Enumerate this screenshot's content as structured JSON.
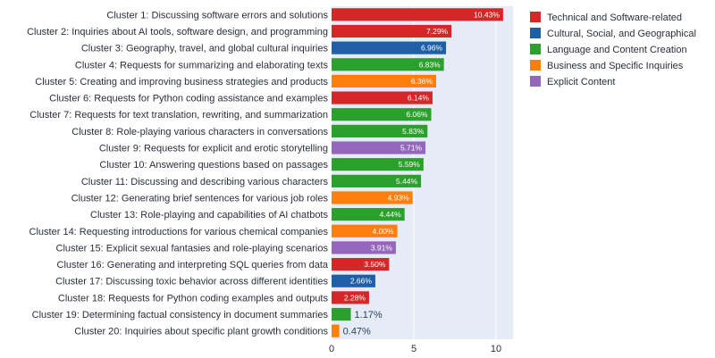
{
  "chart_data": {
    "type": "bar",
    "orientation": "horizontal",
    "xlim": [
      0,
      11
    ],
    "xticks": [
      0,
      5,
      10
    ],
    "categories": [
      "Cluster 1: Discussing software errors and solutions",
      "Cluster 2: Inquiries about AI tools, software design, and programming",
      "Cluster 3: Geography, travel, and global cultural inquiries",
      "Cluster 4: Requests for summarizing and elaborating texts",
      "Cluster 5: Creating and improving business strategies and products",
      "Cluster 6: Requests for Python coding assistance and examples",
      "Cluster 7: Requests for text translation, rewriting, and summarization",
      "Cluster 8: Role-playing various characters in conversations",
      "Cluster 9: Requests for explicit and erotic storytelling",
      "Cluster 10: Answering questions based on passages",
      "Cluster 11: Discussing and describing various characters",
      "Cluster 12: Generating brief sentences for various job roles",
      "Cluster 13: Role-playing and capabilities of AI chatbots",
      "Cluster 14: Requesting introductions for various chemical companies",
      "Cluster 15: Explicit sexual fantasies and role-playing scenarios",
      "Cluster 16: Generating and interpreting SQL queries from data",
      "Cluster 17: Discussing toxic behavior across different identities",
      "Cluster 18: Requests for Python coding examples and outputs",
      "Cluster 19: Determining factual consistency in document summaries",
      "Cluster 20: Inquiries about specific plant growth conditions"
    ],
    "values": [
      10.43,
      7.29,
      6.96,
      6.83,
      6.36,
      6.14,
      6.06,
      5.83,
      5.71,
      5.59,
      5.44,
      4.93,
      4.44,
      4.0,
      3.91,
      3.5,
      2.66,
      2.28,
      1.17,
      0.47
    ],
    "value_labels": [
      "10.43%",
      "7.29%",
      "6.96%",
      "6.83%",
      "6.36%",
      "6.14%",
      "6.06%",
      "5.83%",
      "5.71%",
      "5.59%",
      "5.44%",
      "4.93%",
      "4.44%",
      "4.00%",
      "3.91%",
      "3.50%",
      "2.66%",
      "2.28%",
      "1.17%",
      "0.47%"
    ],
    "groups": [
      0,
      0,
      1,
      2,
      3,
      0,
      2,
      2,
      4,
      2,
      2,
      3,
      2,
      3,
      4,
      0,
      1,
      0,
      2,
      3
    ],
    "legend": [
      {
        "name": "Technical and Software-related",
        "color": "#d62728"
      },
      {
        "name": "Cultural, Social, and Geographical",
        "color": "#1f5fa8"
      },
      {
        "name": "Language and Content Creation",
        "color": "#2ca02c"
      },
      {
        "name": "Business and Specific Inquiries",
        "color": "#ff7f0e"
      },
      {
        "name": "Explicit Content",
        "color": "#9467bd"
      }
    ],
    "legend_position": "top-right",
    "plot_background": "#e5ecf6",
    "grid": true
  }
}
